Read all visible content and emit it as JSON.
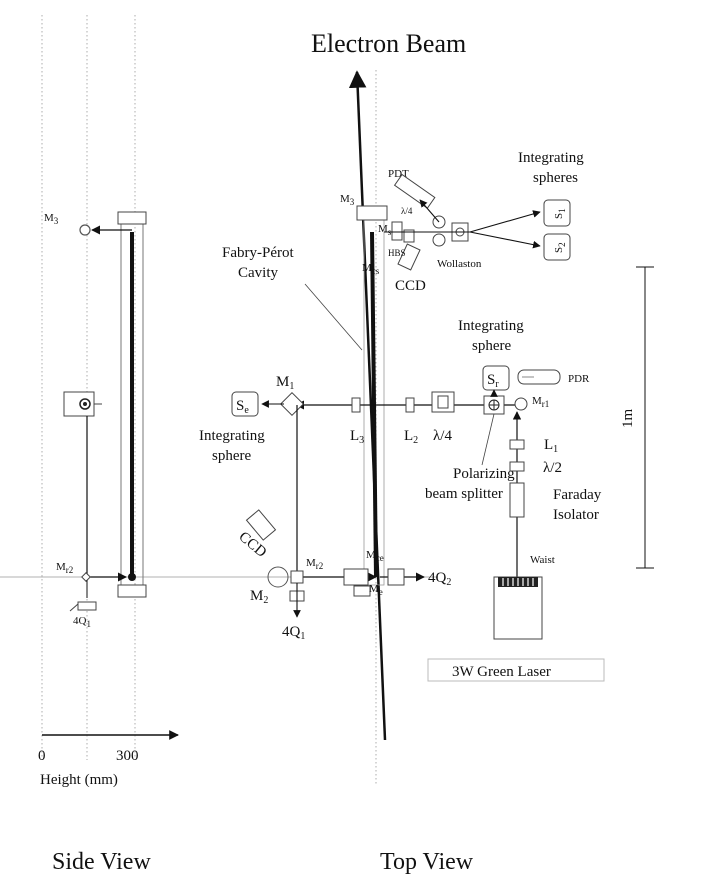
{
  "titles": {
    "electron_beam": "Electron Beam",
    "side_view": "Side View",
    "top_view": "Top View"
  },
  "labels": {
    "fabry_perot": [
      "Fabry-Pérot",
      "Cavity"
    ],
    "integrating_spheres": [
      "Integrating",
      "spheres"
    ],
    "integrating_sphere_top": [
      "Integrating",
      "sphere"
    ],
    "integrating_sphere_left": [
      "Integrating",
      "sphere"
    ],
    "polarizing_bs": [
      "Polarizing",
      "beam splitter"
    ],
    "faraday": [
      "Faraday",
      "Isolator"
    ],
    "laser": "3W Green Laser",
    "waist": "Waist",
    "pdt": "PDT",
    "pdr": "PDR",
    "wollaston": "Wollaston",
    "hbs": "HBS",
    "ccd_top": "CCD",
    "ccd_bottom": "CCD",
    "scale": "1m",
    "lambda4_small": "λ/4",
    "lambda4": "λ/4",
    "lambda2": "λ/2"
  },
  "mirrors": {
    "m3_side": {
      "base": "M",
      "sub": "3"
    },
    "mr2_side": {
      "base": "M",
      "sub": "r2"
    },
    "q41_side": {
      "base": "4Q",
      "sub": "1"
    },
    "m3_top": {
      "base": "M",
      "sub": "3"
    },
    "ms": {
      "base": "M",
      "sub": "s"
    },
    "mcs": {
      "base": "M",
      "sub": "cs"
    },
    "m1": {
      "base": "M",
      "sub": "1"
    },
    "se": {
      "base": "S",
      "sub": "e"
    },
    "l3": {
      "base": "L",
      "sub": "3"
    },
    "l2": {
      "base": "L",
      "sub": "2"
    },
    "sr": {
      "base": "S",
      "sub": "r"
    },
    "mr1": {
      "base": "M",
      "sub": "r1"
    },
    "l1": {
      "base": "L",
      "sub": "1"
    },
    "mr2_top": {
      "base": "M",
      "sub": "r2"
    },
    "m2": {
      "base": "M",
      "sub": "2"
    },
    "q41_top": {
      "base": "4Q",
      "sub": "1"
    },
    "mce": {
      "base": "M",
      "sub": "ce"
    },
    "me": {
      "base": "M",
      "sub": "e"
    },
    "q42": {
      "base": "4Q",
      "sub": "2"
    },
    "s1": {
      "base": "S",
      "sub": "1"
    },
    "s2": {
      "base": "S",
      "sub": "2"
    }
  },
  "axis": {
    "ticks": [
      "0",
      "300"
    ],
    "label": "Height (mm)"
  }
}
